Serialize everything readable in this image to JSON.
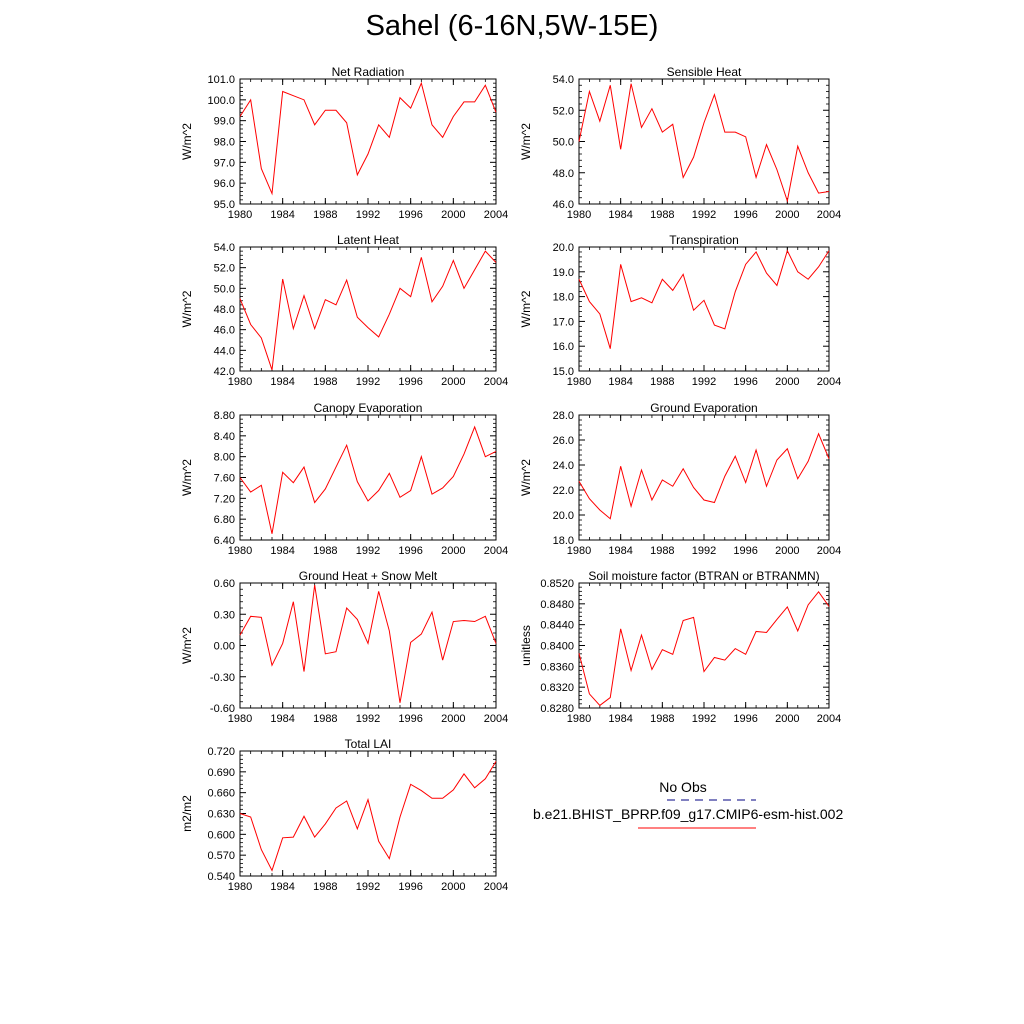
{
  "title": "Sahel (6-16N,5W-15E)",
  "colors": {
    "series": "#ff0000",
    "obs": "#000080",
    "axis": "#000000"
  },
  "legend": {
    "obs_label": "No Obs",
    "model_label": "b.e21.BHIST_BPRP.f09_g17.CMIP6-esm-hist.002"
  },
  "chart_data": [
    {
      "type": "line",
      "title": "Net Radiation",
      "ylabel": "W/m^2",
      "xlim": [
        1980,
        2004
      ],
      "ylim": [
        95.0,
        101.0
      ],
      "x_ticks": [
        "1980",
        "1984",
        "1988",
        "1992",
        "1996",
        "2000",
        "2004"
      ],
      "y_ticks": [
        "95.0",
        "96.0",
        "97.0",
        "98.0",
        "99.0",
        "100.0",
        "101.0"
      ],
      "x": [
        1980,
        1981,
        1982,
        1983,
        1984,
        1985,
        1986,
        1987,
        1988,
        1989,
        1990,
        1991,
        1992,
        1993,
        1994,
        1995,
        1996,
        1997,
        1998,
        1999,
        2000,
        2001,
        2002,
        2003,
        2004
      ],
      "series": [
        {
          "values": [
            99.2,
            100.0,
            96.7,
            95.5,
            100.4,
            100.2,
            100.0,
            98.8,
            99.5,
            99.5,
            98.9,
            96.4,
            97.4,
            98.8,
            98.2,
            100.1,
            99.6,
            100.8,
            98.8,
            98.2,
            99.2,
            99.9,
            99.9,
            100.7,
            99.4
          ]
        }
      ]
    },
    {
      "type": "line",
      "title": "Sensible Heat",
      "ylabel": "W/m^2",
      "xlim": [
        1980,
        2004
      ],
      "ylim": [
        46.0,
        54.0
      ],
      "x_ticks": [
        "1980",
        "1984",
        "1988",
        "1992",
        "1996",
        "2000",
        "2004"
      ],
      "y_ticks": [
        "46.0",
        "48.0",
        "50.0",
        "52.0",
        "54.0"
      ],
      "x": [
        1980,
        1981,
        1982,
        1983,
        1984,
        1985,
        1986,
        1987,
        1988,
        1989,
        1990,
        1991,
        1992,
        1993,
        1994,
        1995,
        1996,
        1997,
        1998,
        1999,
        2000,
        2001,
        2002,
        2003,
        2004
      ],
      "series": [
        {
          "values": [
            50.0,
            53.2,
            51.3,
            53.6,
            49.5,
            53.7,
            50.9,
            52.1,
            50.6,
            51.1,
            47.7,
            49.0,
            51.2,
            53.0,
            50.6,
            50.6,
            50.3,
            47.7,
            49.8,
            48.2,
            46.2,
            49.7,
            48.0,
            46.7,
            46.8
          ]
        }
      ]
    },
    {
      "type": "line",
      "title": "Latent Heat",
      "ylabel": "W/m^2",
      "xlim": [
        1980,
        2004
      ],
      "ylim": [
        42.0,
        54.0
      ],
      "x_ticks": [
        "1980",
        "1984",
        "1988",
        "1992",
        "1996",
        "2000",
        "2004"
      ],
      "y_ticks": [
        "42.0",
        "44.0",
        "46.0",
        "48.0",
        "50.0",
        "52.0",
        "54.0"
      ],
      "x": [
        1980,
        1981,
        1982,
        1983,
        1984,
        1985,
        1986,
        1987,
        1988,
        1989,
        1990,
        1991,
        1992,
        1993,
        1994,
        1995,
        1996,
        1997,
        1998,
        1999,
        2000,
        2001,
        2002,
        2003,
        2004
      ],
      "series": [
        {
          "values": [
            49.0,
            46.5,
            45.2,
            42.1,
            50.9,
            46.1,
            49.3,
            46.1,
            48.9,
            48.4,
            50.8,
            47.2,
            46.2,
            45.3,
            47.5,
            50.0,
            49.2,
            53.0,
            48.7,
            50.2,
            52.7,
            50.0,
            51.8,
            53.6,
            52.5
          ]
        }
      ]
    },
    {
      "type": "line",
      "title": "Transpiration",
      "ylabel": "W/m^2",
      "xlim": [
        1980,
        2004
      ],
      "ylim": [
        15.0,
        20.0
      ],
      "x_ticks": [
        "1980",
        "1984",
        "1988",
        "1992",
        "1996",
        "2000",
        "2004"
      ],
      "y_ticks": [
        "15.0",
        "16.0",
        "17.0",
        "18.0",
        "19.0",
        "20.0"
      ],
      "x": [
        1980,
        1981,
        1982,
        1983,
        1984,
        1985,
        1986,
        1987,
        1988,
        1989,
        1990,
        1991,
        1992,
        1993,
        1994,
        1995,
        1996,
        1997,
        1998,
        1999,
        2000,
        2001,
        2002,
        2003,
        2004
      ],
      "series": [
        {
          "values": [
            18.7,
            17.8,
            17.3,
            15.9,
            19.3,
            17.8,
            17.95,
            17.75,
            18.7,
            18.25,
            18.9,
            17.45,
            17.85,
            16.85,
            16.7,
            18.2,
            19.3,
            19.8,
            18.95,
            18.45,
            19.85,
            19.0,
            18.7,
            19.2,
            19.85
          ]
        }
      ]
    },
    {
      "type": "line",
      "title": "Canopy Evaporation",
      "ylabel": "W/m^2",
      "xlim": [
        1980,
        2004
      ],
      "ylim": [
        6.4,
        8.8
      ],
      "x_ticks": [
        "1980",
        "1984",
        "1988",
        "1992",
        "1996",
        "2000",
        "2004"
      ],
      "y_ticks": [
        "6.40",
        "6.80",
        "7.20",
        "7.60",
        "8.00",
        "8.40",
        "8.80"
      ],
      "x": [
        1980,
        1981,
        1982,
        1983,
        1984,
        1985,
        1986,
        1987,
        1988,
        1989,
        1990,
        1991,
        1992,
        1993,
        1994,
        1995,
        1996,
        1997,
        1998,
        1999,
        2000,
        2001,
        2002,
        2003,
        2004
      ],
      "series": [
        {
          "values": [
            7.6,
            7.32,
            7.45,
            6.52,
            7.7,
            7.5,
            7.8,
            7.12,
            7.38,
            7.8,
            8.22,
            7.52,
            7.15,
            7.35,
            7.68,
            7.22,
            7.35,
            8.0,
            7.28,
            7.4,
            7.62,
            8.05,
            8.57,
            8.0,
            8.1
          ]
        }
      ]
    },
    {
      "type": "line",
      "title": "Ground Evaporation",
      "ylabel": "W/m^2",
      "xlim": [
        1980,
        2004
      ],
      "ylim": [
        18.0,
        28.0
      ],
      "x_ticks": [
        "1980",
        "1984",
        "1988",
        "1992",
        "1996",
        "2000",
        "2004"
      ],
      "y_ticks": [
        "18.0",
        "20.0",
        "22.0",
        "24.0",
        "26.0",
        "28.0"
      ],
      "x": [
        1980,
        1981,
        1982,
        1983,
        1984,
        1985,
        1986,
        1987,
        1988,
        1989,
        1990,
        1991,
        1992,
        1993,
        1994,
        1995,
        1996,
        1997,
        1998,
        1999,
        2000,
        2001,
        2002,
        2003,
        2004
      ],
      "series": [
        {
          "values": [
            22.7,
            21.3,
            20.4,
            19.7,
            23.9,
            20.7,
            23.6,
            21.2,
            22.8,
            22.3,
            23.7,
            22.2,
            21.2,
            21.0,
            23.1,
            24.7,
            22.6,
            25.2,
            22.3,
            24.4,
            25.3,
            22.9,
            24.3,
            26.5,
            24.5
          ]
        }
      ]
    },
    {
      "type": "line",
      "title": "Ground Heat + Snow Melt",
      "ylabel": "W/m^2",
      "xlim": [
        1980,
        2004
      ],
      "ylim": [
        -0.6,
        0.6
      ],
      "x_ticks": [
        "1980",
        "1984",
        "1988",
        "1992",
        "1996",
        "2000",
        "2004"
      ],
      "y_ticks": [
        "-0.60",
        "-0.30",
        "0.00",
        "0.30",
        "0.60"
      ],
      "x": [
        1980,
        1981,
        1982,
        1983,
        1984,
        1985,
        1986,
        1987,
        1988,
        1989,
        1990,
        1991,
        1992,
        1993,
        1994,
        1995,
        1996,
        1997,
        1998,
        1999,
        2000,
        2001,
        2002,
        2003,
        2004
      ],
      "series": [
        {
          "values": [
            0.1,
            0.28,
            0.27,
            -0.19,
            0.02,
            0.42,
            -0.25,
            0.58,
            -0.08,
            -0.06,
            0.36,
            0.25,
            0.02,
            0.52,
            0.14,
            -0.55,
            0.03,
            0.11,
            0.32,
            -0.14,
            0.23,
            0.24,
            0.23,
            0.28,
            0.02
          ]
        }
      ]
    },
    {
      "type": "line",
      "title": "Soil moisture factor (BTRAN or BTRANMN)",
      "ylabel": "unitless",
      "xlim": [
        1980,
        2004
      ],
      "ylim": [
        0.828,
        0.852
      ],
      "x_ticks": [
        "1980",
        "1984",
        "1988",
        "1992",
        "1996",
        "2000",
        "2004"
      ],
      "y_ticks": [
        "0.8280",
        "0.8320",
        "0.8360",
        "0.8400",
        "0.8440",
        "0.8480",
        "0.8520"
      ],
      "x": [
        1980,
        1981,
        1982,
        1983,
        1984,
        1985,
        1986,
        1987,
        1988,
        1989,
        1990,
        1991,
        1992,
        1993,
        1994,
        1995,
        1996,
        1997,
        1998,
        1999,
        2000,
        2001,
        2002,
        2003,
        2004
      ],
      "series": [
        {
          "values": [
            0.8385,
            0.8307,
            0.8285,
            0.83,
            0.8432,
            0.8352,
            0.842,
            0.8354,
            0.8392,
            0.8383,
            0.8448,
            0.8454,
            0.835,
            0.8377,
            0.8372,
            0.8394,
            0.8383,
            0.8427,
            0.8425,
            0.845,
            0.8474,
            0.8428,
            0.8478,
            0.8503,
            0.8475
          ]
        }
      ]
    },
    {
      "type": "line",
      "title": "Total LAI",
      "ylabel": "m2/m2",
      "xlim": [
        1980,
        2004
      ],
      "ylim": [
        0.54,
        0.72
      ],
      "x_ticks": [
        "1980",
        "1984",
        "1988",
        "1992",
        "1996",
        "2000",
        "2004"
      ],
      "y_ticks": [
        "0.540",
        "0.570",
        "0.600",
        "0.630",
        "0.660",
        "0.690",
        "0.720"
      ],
      "x": [
        1980,
        1981,
        1982,
        1983,
        1984,
        1985,
        1986,
        1987,
        1988,
        1989,
        1990,
        1991,
        1992,
        1993,
        1994,
        1995,
        1996,
        1997,
        1998,
        1999,
        2000,
        2001,
        2002,
        2003,
        2004
      ],
      "series": [
        {
          "values": [
            0.63,
            0.625,
            0.578,
            0.548,
            0.595,
            0.596,
            0.626,
            0.596,
            0.615,
            0.638,
            0.648,
            0.608,
            0.65,
            0.59,
            0.565,
            0.625,
            0.672,
            0.663,
            0.652,
            0.652,
            0.664,
            0.687,
            0.667,
            0.68,
            0.705
          ]
        }
      ]
    }
  ]
}
